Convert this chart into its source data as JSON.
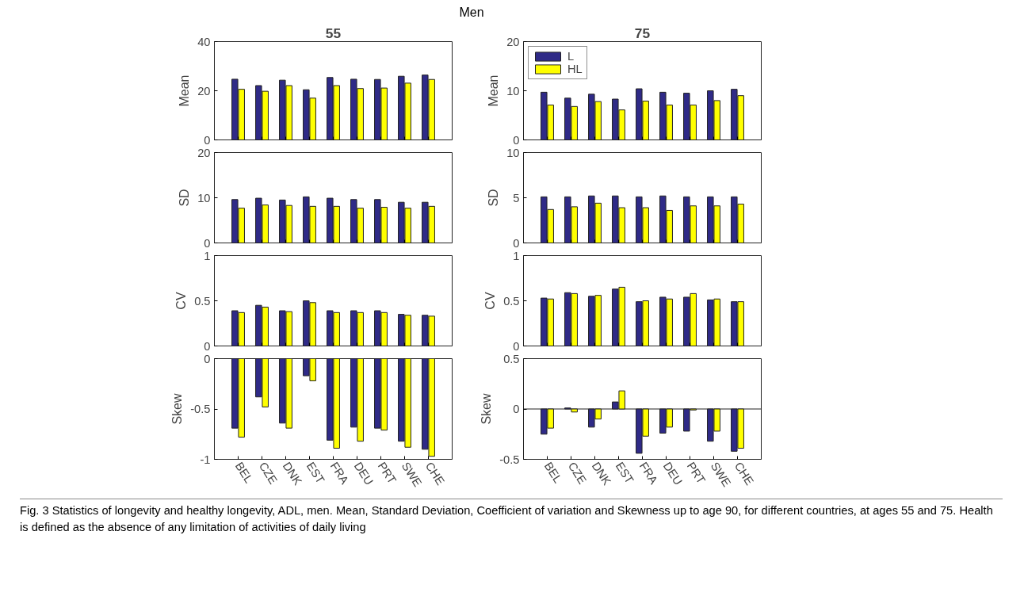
{
  "chart_data": [
    {
      "type": "bar",
      "title": "55",
      "ylabel": "Mean",
      "categories": [
        null,
        null,
        null,
        null,
        null,
        null,
        null,
        null,
        null
      ],
      "ylim": [
        0,
        40
      ],
      "yticks": [
        0,
        20,
        40
      ],
      "tick_labels": "y",
      "grid": false,
      "legend": false,
      "annotations": [
        "Men",
        "Fig. 3 Statistics of longevity and healthy longevity, ADL, men. Mean, Standard Deviation, Coefficient of variation and Skewness up to age 90, for different countries, at ages 55 and 75. Health is defined as the absence of any limitation of activities of daily living"
      ],
      "series": [
        {
          "color": "#2f2a87",
          "values": [
            24.7,
            22.1,
            24.3,
            20.4,
            25.4,
            24.7,
            24.6,
            25.9,
            26.4
          ]
        },
        {
          "color": "#ffff00",
          "values": [
            20.6,
            19.8,
            22.1,
            17.0,
            22.1,
            20.9,
            21.1,
            23.1,
            24.6
          ]
        }
      ]
    },
    {
      "type": "bar",
      "title": "75",
      "ylabel": "Mean",
      "categories": [
        null,
        null,
        null,
        null,
        null,
        null,
        null,
        null,
        null
      ],
      "ylim": [
        0,
        20
      ],
      "yticks": [
        0,
        10,
        20
      ],
      "tick_labels": "y",
      "grid": false,
      "legend": "top left",
      "series": [
        {
          "name": "L",
          "color": "#2f2a87",
          "values": [
            9.7,
            8.5,
            9.3,
            8.3,
            10.4,
            9.7,
            9.5,
            10.0,
            10.3
          ]
        },
        {
          "name": "HL",
          "color": "#ffff00",
          "values": [
            7.1,
            6.8,
            7.8,
            6.1,
            7.9,
            7.1,
            7.1,
            8.0,
            9.0
          ]
        }
      ]
    },
    {
      "type": "bar",
      "ylabel": "SD",
      "categories": [
        null,
        null,
        null,
        null,
        null,
        null,
        null,
        null,
        null
      ],
      "ylim": [
        0,
        20
      ],
      "yticks": [
        0,
        10,
        20
      ],
      "tick_labels": "y",
      "grid": false,
      "series": [
        {
          "color": "#2f2a87",
          "values": [
            9.6,
            9.9,
            9.5,
            10.2,
            9.9,
            9.6,
            9.6,
            9.0,
            9.0
          ]
        },
        {
          "color": "#ffff00",
          "values": [
            7.7,
            8.4,
            8.3,
            8.1,
            8.1,
            7.7,
            7.9,
            7.7,
            8.1
          ]
        }
      ]
    },
    {
      "type": "bar",
      "ylabel": "SD",
      "categories": [
        null,
        null,
        null,
        null,
        null,
        null,
        null,
        null,
        null
      ],
      "ylim": [
        0,
        10
      ],
      "yticks": [
        0,
        5,
        10
      ],
      "tick_labels": "y",
      "grid": false,
      "series": [
        {
          "color": "#2f2a87",
          "values": [
            5.1,
            5.1,
            5.2,
            5.2,
            5.1,
            5.2,
            5.1,
            5.1,
            5.1
          ]
        },
        {
          "color": "#ffff00",
          "values": [
            3.7,
            4.0,
            4.4,
            3.9,
            3.9,
            3.6,
            4.1,
            4.1,
            4.3
          ]
        }
      ]
    },
    {
      "type": "bar",
      "ylabel": "CV",
      "categories": [
        null,
        null,
        null,
        null,
        null,
        null,
        null,
        null,
        null
      ],
      "ylim": [
        0,
        1
      ],
      "yticks": [
        0,
        0.5,
        1
      ],
      "tick_labels": "y",
      "grid": false,
      "series": [
        {
          "color": "#2f2a87",
          "values": [
            0.39,
            0.45,
            0.39,
            0.5,
            0.39,
            0.39,
            0.39,
            0.35,
            0.34
          ]
        },
        {
          "color": "#ffff00",
          "values": [
            0.37,
            0.43,
            0.38,
            0.48,
            0.37,
            0.37,
            0.37,
            0.34,
            0.33
          ]
        }
      ]
    },
    {
      "type": "bar",
      "ylabel": "CV",
      "categories": [
        null,
        null,
        null,
        null,
        null,
        null,
        null,
        null,
        null
      ],
      "ylim": [
        0,
        1
      ],
      "yticks": [
        0,
        0.5,
        1
      ],
      "tick_labels": "y",
      "grid": false,
      "series": [
        {
          "color": "#2f2a87",
          "values": [
            0.53,
            0.59,
            0.55,
            0.63,
            0.49,
            0.54,
            0.54,
            0.51,
            0.49
          ]
        },
        {
          "color": "#ffff00",
          "values": [
            0.52,
            0.58,
            0.56,
            0.65,
            0.5,
            0.52,
            0.58,
            0.52,
            0.49
          ]
        }
      ]
    },
    {
      "type": "bar",
      "ylabel": "Skew",
      "categories": [
        "BEL",
        "CZE",
        "DNK",
        "EST",
        "FRA",
        "DEU",
        "PRT",
        "SWE",
        "CHE"
      ],
      "ylim": [
        -1,
        0
      ],
      "yticks": [
        -1,
        -0.5,
        0
      ],
      "grid": false,
      "series": [
        {
          "color": "#2f2a87",
          "values": [
            -0.69,
            -0.38,
            -0.64,
            -0.17,
            -0.81,
            -0.68,
            -0.69,
            -0.82,
            -0.9
          ]
        },
        {
          "color": "#ffff00",
          "values": [
            -0.78,
            -0.48,
            -0.69,
            -0.22,
            -0.89,
            -0.82,
            -0.71,
            -0.88,
            -0.97
          ]
        }
      ]
    },
    {
      "type": "bar",
      "ylabel": "Skew",
      "categories": [
        "BEL",
        "CZE",
        "DNK",
        "EST",
        "FRA",
        "DEU",
        "PRT",
        "SWE",
        "CHE"
      ],
      "ylim": [
        -0.5,
        0.5
      ],
      "yticks": [
        -0.5,
        0,
        0.5
      ],
      "grid": false,
      "ref_lines": [
        {
          "axis": "y",
          "value": 0
        }
      ],
      "series": [
        {
          "color": "#2f2a87",
          "values": [
            -0.25,
            0.01,
            -0.18,
            0.07,
            -0.44,
            -0.24,
            -0.22,
            -0.32,
            -0.42
          ]
        },
        {
          "color": "#ffff00",
          "values": [
            -0.19,
            -0.03,
            -0.1,
            0.18,
            -0.27,
            -0.18,
            -0.01,
            -0.22,
            -0.39
          ]
        }
      ]
    }
  ]
}
